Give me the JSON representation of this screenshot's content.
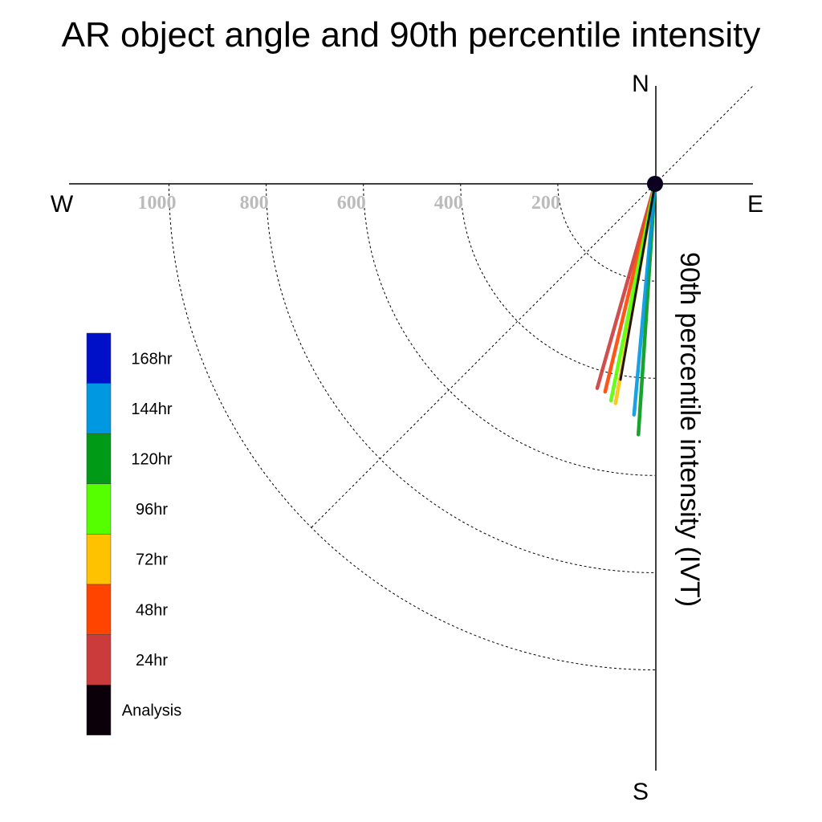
{
  "chart_data": {
    "type": "line",
    "title": "AR object angle and 90th percentile intensity",
    "ylabel": "90th percentile intensity (IVT)",
    "compass": {
      "north": "N",
      "south": "S",
      "east": "E",
      "west": "W"
    },
    "radial_ticks": [
      200,
      400,
      600,
      800,
      1000
    ],
    "radial_tick_color": "#bbbbbb",
    "rings_drawn": [
      200,
      400,
      600,
      800,
      1000
    ],
    "legend": [
      {
        "label": "168hr",
        "color": "#0010c8"
      },
      {
        "label": "144hr",
        "color": "#0098e0"
      },
      {
        "label": "120hr",
        "color": "#009a16"
      },
      {
        "label": "96hr",
        "color": "#55ff00"
      },
      {
        "label": "72hr",
        "color": "#ffc200"
      },
      {
        "label": "48hr",
        "color": "#ff4400"
      },
      {
        "label": "24hr",
        "color": "#cc3b3b"
      },
      {
        "label": "Analysis",
        "color": "#0b0009"
      }
    ],
    "series": [
      {
        "name": "24hr",
        "color": "#cc3b3b",
        "angle_deg": 195.8,
        "intensity": 437
      },
      {
        "name": "48hr",
        "color": "#ff4400",
        "angle_deg": 193.5,
        "intensity": 440
      },
      {
        "name": "72hr",
        "color": "#ffc200",
        "angle_deg": 190.2,
        "intensity": 459
      },
      {
        "name": "96hr",
        "color": "#55ff00",
        "angle_deg": 191.5,
        "intensity": 455
      },
      {
        "name": "120hr",
        "color": "#009a16",
        "angle_deg": 183.8,
        "intensity": 517
      },
      {
        "name": "144hr",
        "color": "#0098e0",
        "angle_deg": 185.2,
        "intensity": 477
      },
      {
        "name": "Analysis",
        "color": "#0b0009",
        "angle_deg": 190.0,
        "intensity": 409
      }
    ]
  }
}
